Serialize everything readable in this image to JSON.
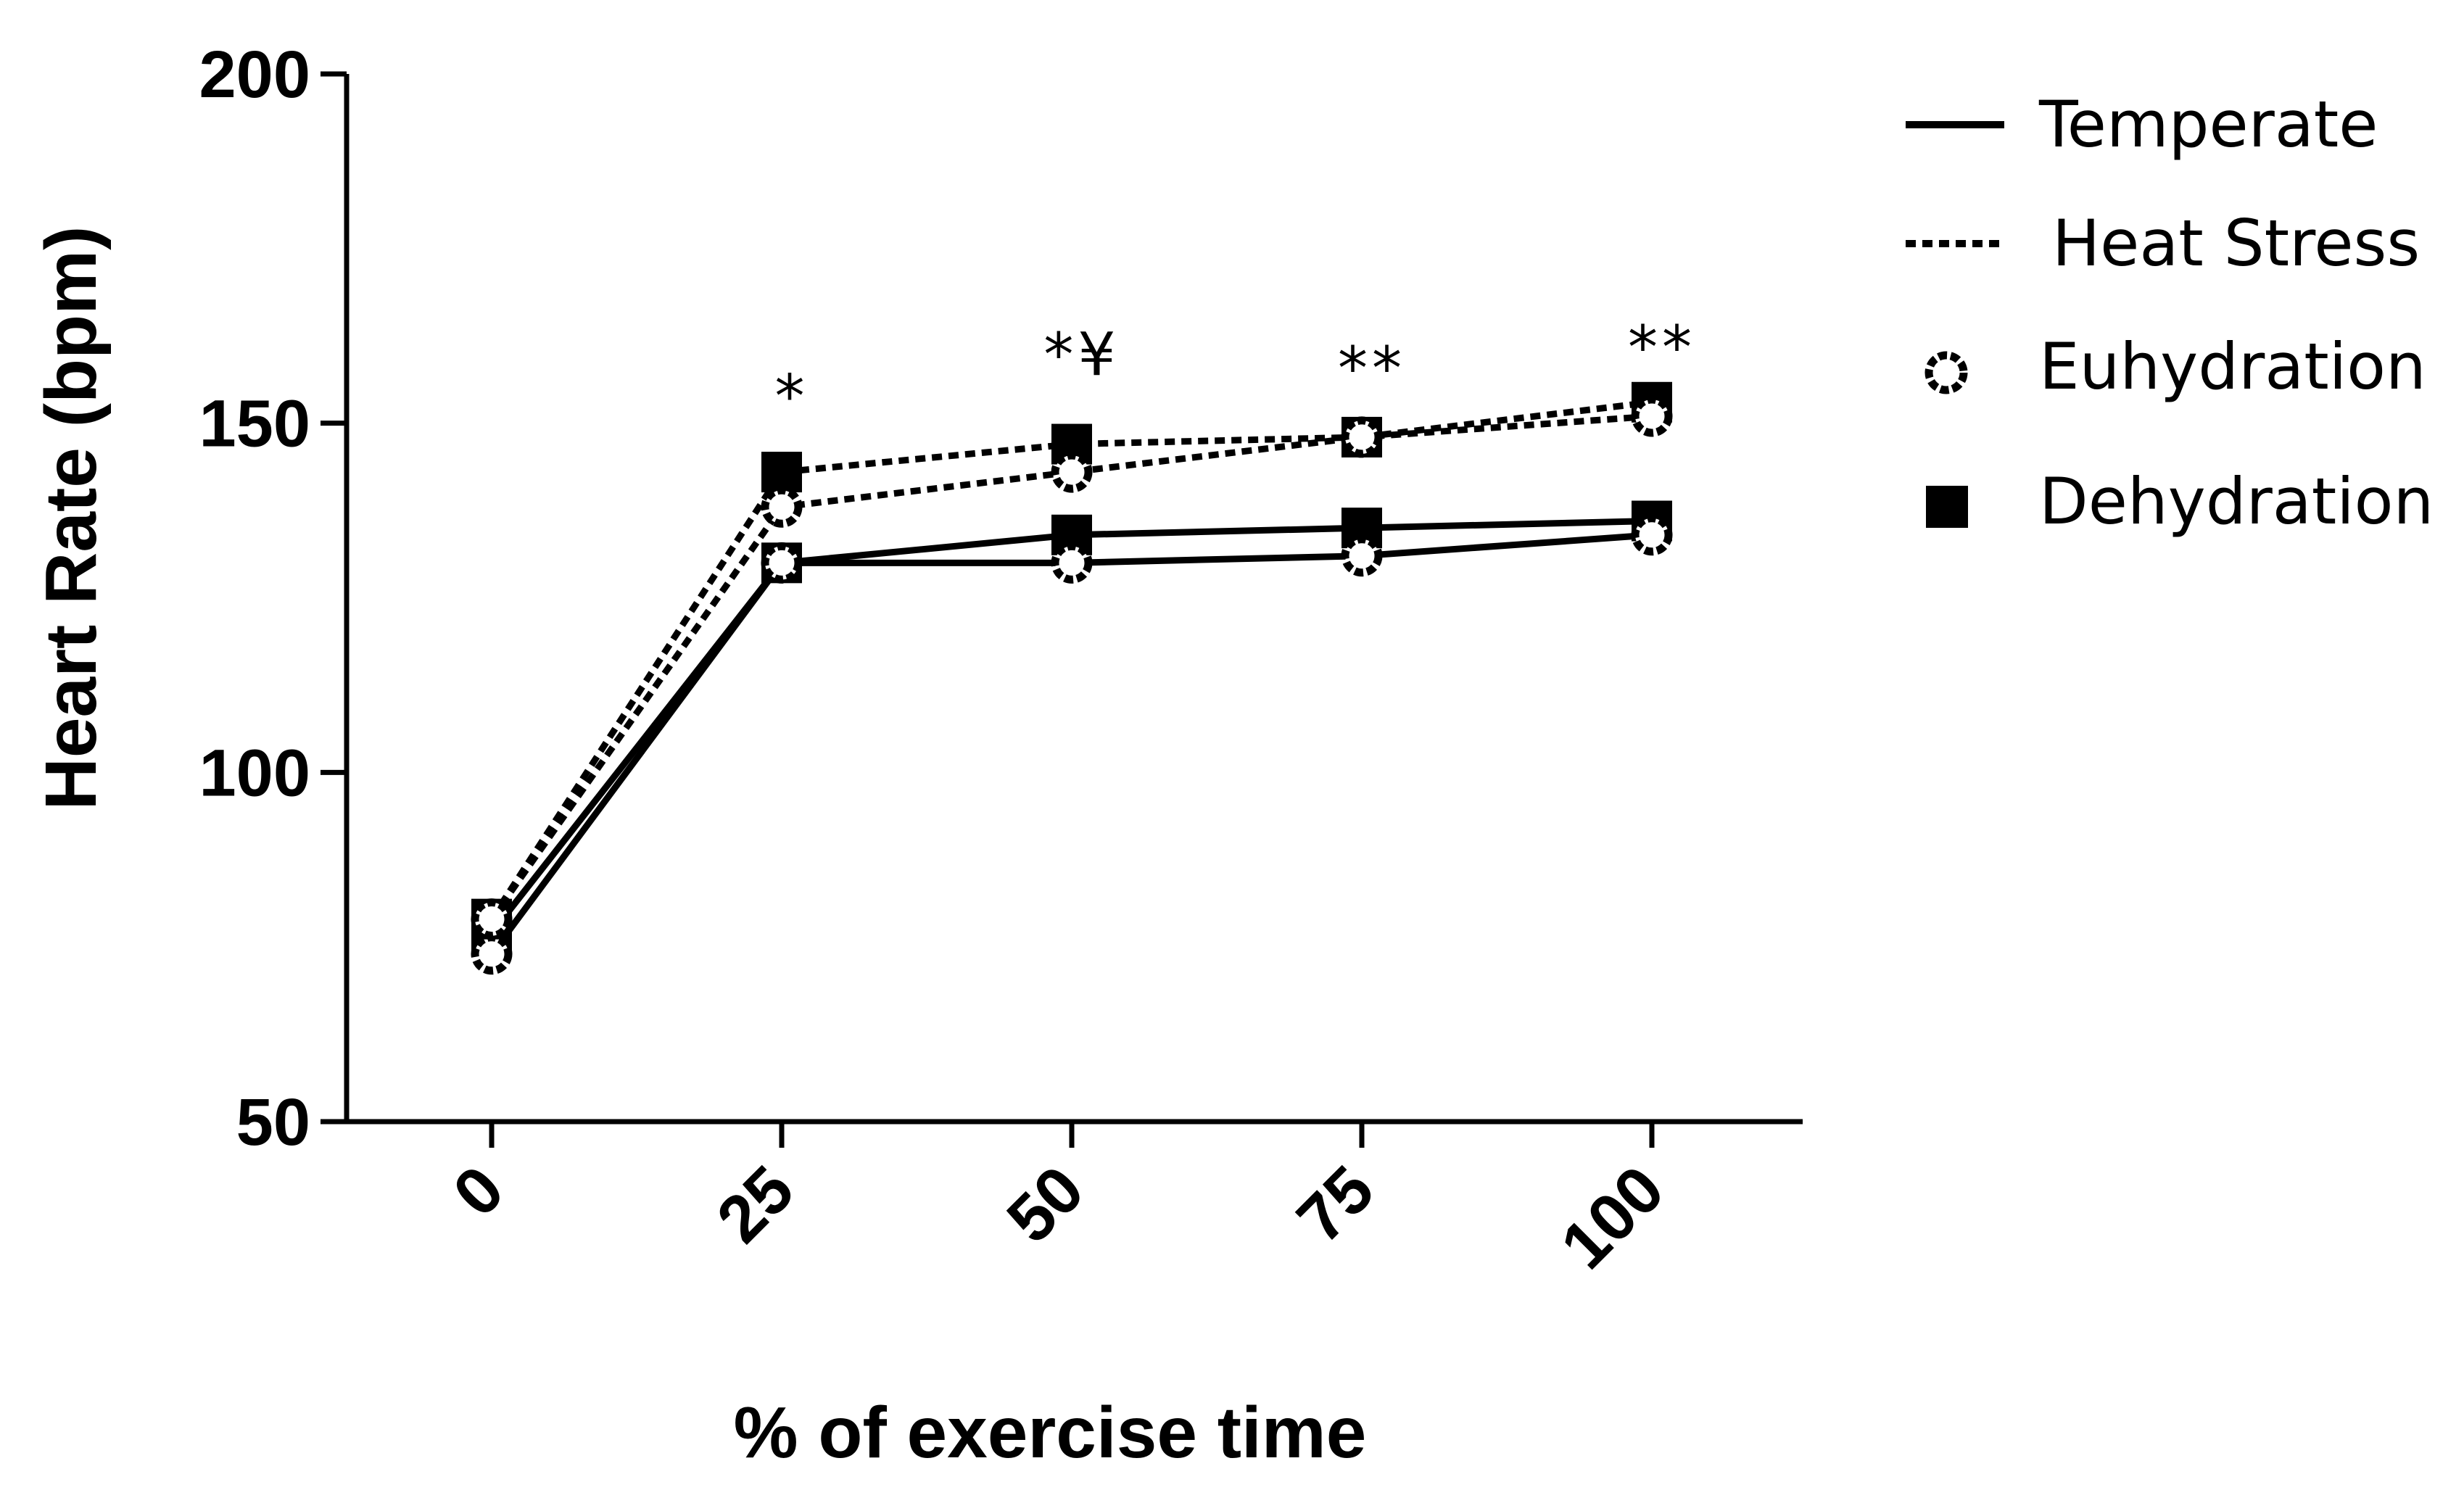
{
  "chart_data": {
    "type": "line",
    "title": "",
    "xlabel": "% of exercise time",
    "ylabel": "Heart Rate (bpm)",
    "x": [
      0,
      25,
      50,
      75,
      100
    ],
    "x_tick_labels": [
      "0",
      "25",
      "50",
      "75",
      "100"
    ],
    "ylim": [
      50,
      200
    ],
    "y_ticks": [
      50,
      100,
      150,
      200
    ],
    "y_tick_labels": [
      "50",
      "100",
      "150",
      "200"
    ],
    "grid": false,
    "legend_position": "top-right",
    "legend": [
      {
        "label": "Temperate",
        "kind": "line",
        "style": "solid"
      },
      {
        "label": "Heat Stress",
        "kind": "line",
        "style": "dotted"
      },
      {
        "label": "Euhydration",
        "kind": "marker",
        "marker": "open-circle"
      },
      {
        "label": "Dehydration",
        "kind": "marker",
        "marker": "filled-square"
      }
    ],
    "series": [
      {
        "name": "Temperate Dehydration",
        "line": "solid",
        "marker": "filled-square",
        "values": [
          77,
          130,
          134,
          135,
          136
        ]
      },
      {
        "name": "Temperate Euhydration",
        "line": "solid",
        "marker": "open-circle",
        "values": [
          74,
          130,
          130,
          131,
          134
        ]
      },
      {
        "name": "Heat Stress Dehydration",
        "line": "dotted",
        "marker": "filled-square",
        "values": [
          79,
          143,
          147,
          148,
          153
        ]
      },
      {
        "name": "Heat Stress Euhydration",
        "line": "dotted",
        "marker": "open-circle",
        "values": [
          79,
          138,
          143,
          148,
          151
        ]
      }
    ],
    "annotations": [
      {
        "text": "*",
        "x": 25,
        "y": 154
      },
      {
        "text": "*¥",
        "x": 50,
        "y": 160
      },
      {
        "text": "**",
        "x": 75,
        "y": 158
      },
      {
        "text": "**",
        "x": 100,
        "y": 161
      }
    ]
  },
  "colors": {
    "foreground": "#000000",
    "background": "#ffffff"
  }
}
